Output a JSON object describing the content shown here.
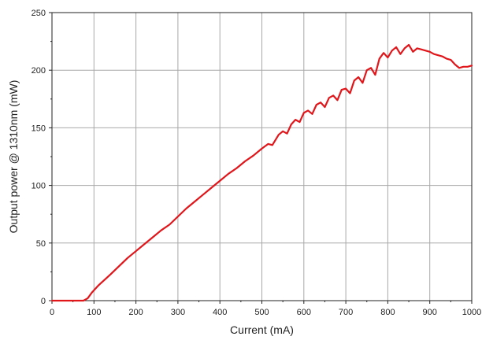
{
  "chart_data": {
    "type": "line",
    "title": "",
    "xlabel": "Current (mA)",
    "ylabel": "Output power @ 1310nm (mW)",
    "xlim": [
      0,
      1000
    ],
    "ylim": [
      0,
      250
    ],
    "x_ticks": [
      0,
      100,
      200,
      300,
      400,
      500,
      600,
      700,
      800,
      900,
      1000
    ],
    "y_ticks": [
      0,
      50,
      100,
      150,
      200,
      250
    ],
    "grid": true,
    "legend": "none",
    "colors": {
      "series": "#e0161b",
      "grid": "#a8a8a8",
      "axis": "#222222"
    },
    "series": [
      {
        "x": [
          0,
          20,
          40,
          60,
          75,
          85,
          95,
          110,
          125,
          140,
          160,
          180,
          200,
          220,
          240,
          260,
          280,
          300,
          320,
          340,
          360,
          380,
          400,
          420,
          440,
          460,
          480,
          500,
          515,
          525,
          540,
          550,
          560,
          570,
          580,
          590,
          600,
          610,
          620,
          630,
          640,
          650,
          660,
          670,
          680,
          690,
          700,
          710,
          720,
          730,
          740,
          750,
          760,
          770,
          780,
          790,
          800,
          810,
          820,
          830,
          840,
          850,
          860,
          870,
          880,
          890,
          900,
          910,
          920,
          930,
          940,
          950,
          960,
          970,
          980,
          990,
          1000
        ],
        "y": [
          0,
          0,
          0,
          0,
          0,
          2,
          7,
          13,
          18,
          23,
          30,
          37,
          43,
          49,
          55,
          61,
          66,
          73,
          80,
          86,
          92,
          98,
          104,
          110,
          115,
          121,
          126,
          132,
          136,
          135,
          144,
          147,
          145,
          153,
          157,
          155,
          163,
          165,
          162,
          170,
          172,
          168,
          176,
          178,
          174,
          183,
          184,
          180,
          191,
          194,
          189,
          200,
          202,
          196,
          210,
          215,
          211,
          217,
          220,
          214,
          219,
          222,
          216,
          219,
          218,
          217,
          216,
          214,
          213,
          212,
          210,
          209,
          205,
          202,
          203,
          203,
          204
        ]
      }
    ]
  }
}
